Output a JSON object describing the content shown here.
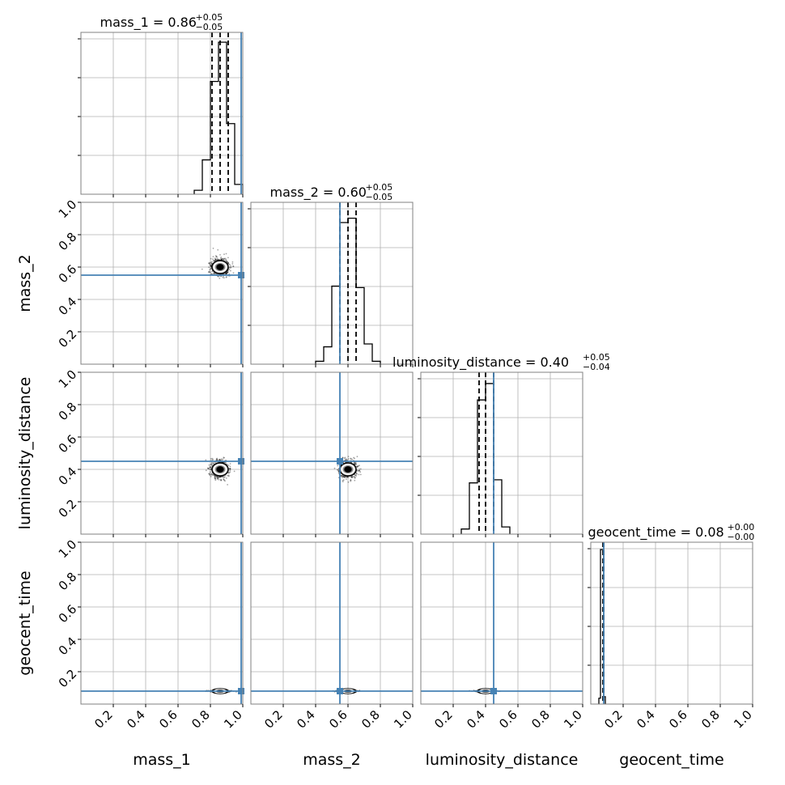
{
  "parameters": [
    "mass_1",
    "mass_2",
    "luminosity_distance",
    "geocent_time"
  ],
  "tick_labels": [
    "0.2",
    "0.4",
    "0.6",
    "0.8",
    "1.0"
  ],
  "diagonal_titles": [
    {
      "name": "mass_1",
      "median": "0.86",
      "plus": "+0.05",
      "minus": "−0.05"
    },
    {
      "name": "mass_2",
      "median": "0.60",
      "plus": "+0.05",
      "minus": "−0.05"
    },
    {
      "name": "luminosity_distance",
      "median": "0.40",
      "plus": "+0.05",
      "minus": "−0.04"
    },
    {
      "name": "geocent_time",
      "median": "0.08",
      "plus": "+0.00",
      "minus": "−0.00"
    }
  ],
  "colors": {
    "truth": "#4682b4",
    "histogram": "#000000",
    "grid": "#b0b0b0",
    "frame": "#808080"
  },
  "chart_data": {
    "type": "corner",
    "axis_range": [
      0,
      1
    ],
    "grid": true,
    "truths": {
      "mass_1": 0.99,
      "mass_2": 0.55,
      "luminosity_distance": 0.45,
      "geocent_time": 0.08
    },
    "quantiles": [
      {
        "parameter": "mass_1",
        "values": [
          0.81,
          0.86,
          0.91
        ]
      },
      {
        "parameter": "mass_2",
        "values": [
          0.55,
          0.6,
          0.65
        ]
      },
      {
        "parameter": "luminosity_distance",
        "values": [
          0.36,
          0.4,
          0.45
        ]
      },
      {
        "parameter": "geocent_time",
        "values": [
          0.075,
          0.08,
          0.08
        ]
      }
    ],
    "histograms": [
      {
        "parameter": "mass_1",
        "bin_edges": [
          0.7,
          0.75,
          0.8,
          0.85,
          0.9,
          0.95,
          1.0
        ],
        "heights": [
          0.04,
          0.35,
          1.15,
          1.55,
          0.72,
          0.1
        ]
      },
      {
        "parameter": "mass_2",
        "bin_edges": [
          0.4,
          0.45,
          0.5,
          0.55,
          0.6,
          0.65,
          0.7,
          0.75,
          0.8
        ],
        "heights": [
          0.02,
          0.12,
          0.54,
          0.98,
          1.01,
          0.53,
          0.14,
          0.02
        ]
      },
      {
        "parameter": "luminosity_distance",
        "bin_edges": [
          0.25,
          0.3,
          0.35,
          0.4,
          0.45,
          0.5,
          0.55
        ],
        "heights": [
          0.05,
          0.5,
          1.31,
          1.47,
          0.53,
          0.07
        ]
      },
      {
        "parameter": "geocent_time",
        "bin_edges": [
          0.05,
          0.06,
          0.07,
          0.08,
          0.09
        ],
        "heights": [
          0.08,
          2.1,
          2.1,
          0.1
        ]
      }
    ],
    "posterior_centers": [
      {
        "x": "mass_1",
        "y": "mass_2",
        "center": [
          0.86,
          0.6
        ],
        "spread": [
          0.05,
          0.05
        ]
      },
      {
        "x": "mass_1",
        "y": "luminosity_distance",
        "center": [
          0.86,
          0.4
        ],
        "spread": [
          0.05,
          0.05
        ]
      },
      {
        "x": "mass_2",
        "y": "luminosity_distance",
        "center": [
          0.6,
          0.4
        ],
        "spread": [
          0.05,
          0.05
        ]
      },
      {
        "x": "mass_1",
        "y": "geocent_time",
        "center": [
          0.86,
          0.08
        ],
        "spread": [
          0.05,
          0.004
        ]
      },
      {
        "x": "mass_2",
        "y": "geocent_time",
        "center": [
          0.6,
          0.08
        ],
        "spread": [
          0.05,
          0.004
        ]
      },
      {
        "x": "luminosity_distance",
        "y": "geocent_time",
        "center": [
          0.4,
          0.08
        ],
        "spread": [
          0.05,
          0.004
        ]
      }
    ]
  }
}
